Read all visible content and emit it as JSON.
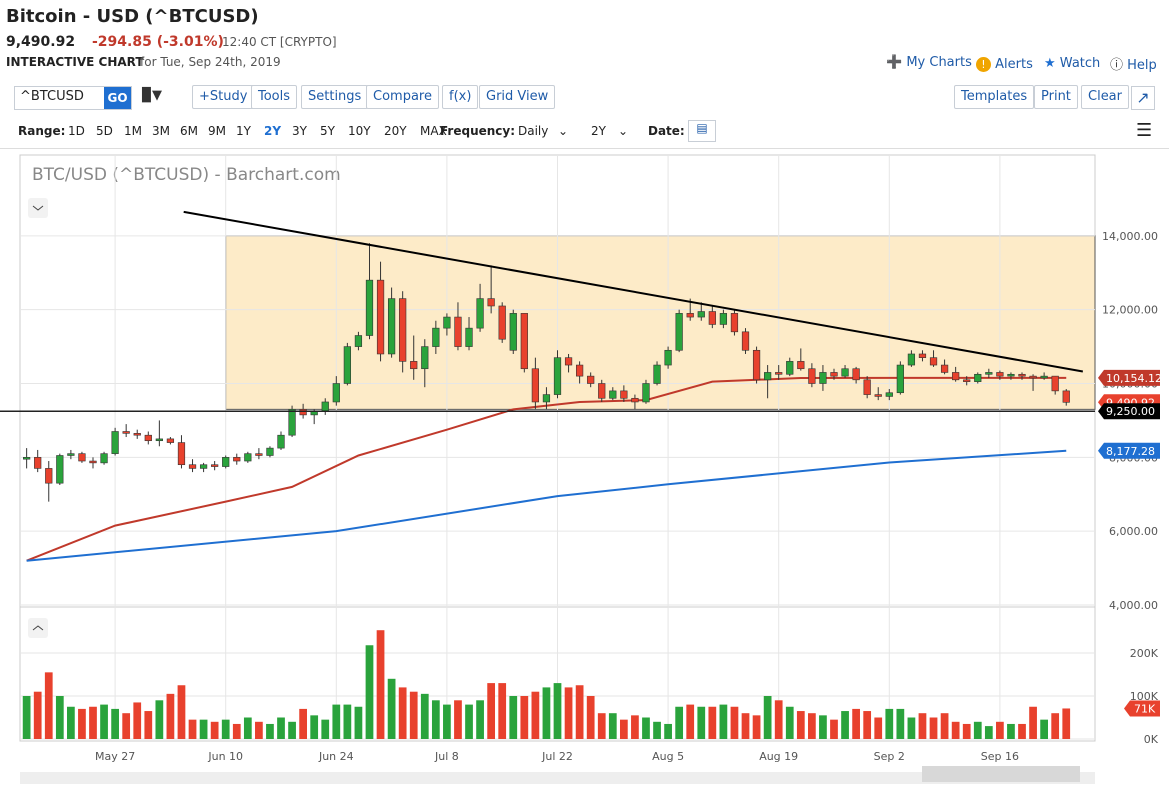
{
  "header": {
    "title": "Bitcoin - USD (^BTCUSD)",
    "price": "9,490.92",
    "change": "-294.85 (-3.01%)",
    "time": "12:40 CT [CRYPTO]",
    "chart_label": "INTERACTIVE CHART",
    "chart_date": "for Tue, Sep 24th, 2019",
    "links": [
      "My Charts",
      "Alerts",
      "Watch",
      "Help"
    ]
  },
  "toolbar": {
    "symbol": "^BTCUSD",
    "go": "GO",
    "buttons": [
      "+Study",
      "Tools",
      "Settings",
      "Compare",
      "f(x)",
      "Grid View"
    ],
    "right_buttons": [
      "Templates",
      "Print",
      "Clear"
    ]
  },
  "range_bar": {
    "range_label": "Range:",
    "ranges": [
      "1D",
      "5D",
      "1M",
      "3M",
      "6M",
      "9M",
      "1Y",
      "2Y",
      "3Y",
      "5Y",
      "10Y",
      "20Y",
      "MAX"
    ],
    "selected_range_index": 7,
    "frequency_label": "Frequency:",
    "frequency": "Daily",
    "period": "2Y",
    "date_label": "Date:"
  },
  "chart_data": {
    "type": "candlestick",
    "title": "BTC/USD (^BTCUSD) - Barchart.com",
    "up_color": "#2aa33c",
    "down_color": "#e8412d",
    "xlim": [
      -0.6,
      96.6
    ],
    "xticks": [
      {
        "value": 8,
        "label": "May 27"
      },
      {
        "value": 18,
        "label": "Jun 10"
      },
      {
        "value": 28,
        "label": "Jun 24"
      },
      {
        "value": 38,
        "label": "Jul 8"
      },
      {
        "value": 48,
        "label": "Jul 22"
      },
      {
        "value": 58,
        "label": "Aug 5"
      },
      {
        "value": 68,
        "label": "Aug 19"
      },
      {
        "value": 78,
        "label": "Sep 2"
      },
      {
        "value": 88,
        "label": "Sep 16"
      }
    ],
    "ylim": [
      4000,
      16190
    ],
    "yticks": [
      {
        "value": 4000,
        "label": "4,000.00"
      },
      {
        "value": 6000,
        "label": "6,000.00"
      },
      {
        "value": 8000,
        "label": "8,000.00"
      },
      {
        "value": 10000,
        "label": "10,000.00"
      },
      {
        "value": 12000,
        "label": "12,000.00"
      },
      {
        "value": 14000,
        "label": "14,000.00"
      }
    ],
    "candles": [
      [
        7950,
        8250,
        7700,
        8000
      ],
      [
        8000,
        8200,
        7600,
        7700
      ],
      [
        7700,
        7900,
        6800,
        7300
      ],
      [
        7300,
        8100,
        7250,
        8050
      ],
      [
        8050,
        8200,
        7950,
        8100
      ],
      [
        8100,
        8150,
        7850,
        7900
      ],
      [
        7900,
        8000,
        7700,
        7850
      ],
      [
        7850,
        8150,
        7800,
        8100
      ],
      [
        8100,
        8800,
        8050,
        8700
      ],
      [
        8700,
        8900,
        8550,
        8650
      ],
      [
        8650,
        8750,
        8500,
        8600
      ],
      [
        8600,
        8700,
        8350,
        8450
      ],
      [
        8450,
        9000,
        8300,
        8500
      ],
      [
        8500,
        8550,
        8350,
        8400
      ],
      [
        8400,
        8600,
        7700,
        7800
      ],
      [
        7800,
        7950,
        7600,
        7700
      ],
      [
        7700,
        7850,
        7600,
        7800
      ],
      [
        7800,
        7900,
        7650,
        7750
      ],
      [
        7750,
        8050,
        7700,
        8000
      ],
      [
        8000,
        8100,
        7800,
        7900
      ],
      [
        7900,
        8150,
        7850,
        8100
      ],
      [
        8100,
        8250,
        7950,
        8050
      ],
      [
        8050,
        8300,
        8000,
        8250
      ],
      [
        8250,
        8700,
        8200,
        8600
      ],
      [
        8600,
        9400,
        8550,
        9300
      ],
      [
        9300,
        9450,
        9050,
        9150
      ],
      [
        9150,
        9300,
        8900,
        9250
      ],
      [
        9250,
        9600,
        9150,
        9500
      ],
      [
        9500,
        10200,
        9400,
        10000
      ],
      [
        10000,
        11100,
        9950,
        11000
      ],
      [
        11000,
        11400,
        10900,
        11300
      ],
      [
        11300,
        13800,
        11200,
        12800
      ],
      [
        12800,
        13300,
        10600,
        10800
      ],
      [
        10800,
        12600,
        10700,
        12300
      ],
      [
        12300,
        12500,
        10300,
        10600
      ],
      [
        10600,
        11300,
        10100,
        10400
      ],
      [
        10400,
        11200,
        9900,
        11000
      ],
      [
        11000,
        11700,
        10800,
        11500
      ],
      [
        11500,
        11900,
        11300,
        11800
      ],
      [
        11800,
        12200,
        10900,
        11000
      ],
      [
        11000,
        11800,
        10900,
        11500
      ],
      [
        11500,
        12700,
        11400,
        12300
      ],
      [
        12300,
        13200,
        11900,
        12100
      ],
      [
        12100,
        12200,
        11100,
        11200
      ],
      [
        10900,
        12000,
        10800,
        11900
      ],
      [
        11900,
        11900,
        10300,
        10400
      ],
      [
        10400,
        10700,
        9300,
        9500
      ],
      [
        9500,
        9900,
        9300,
        9700
      ],
      [
        9700,
        10900,
        9600,
        10700
      ],
      [
        10700,
        10800,
        10300,
        10500
      ],
      [
        10500,
        10600,
        10000,
        10200
      ],
      [
        10200,
        10300,
        9900,
        10000
      ],
      [
        10000,
        10100,
        9500,
        9600
      ],
      [
        9600,
        9900,
        9550,
        9800
      ],
      [
        9800,
        9950,
        9500,
        9600
      ],
      [
        9600,
        9700,
        9300,
        9500
      ],
      [
        9500,
        10100,
        9450,
        10000
      ],
      [
        10000,
        10600,
        9950,
        10500
      ],
      [
        10500,
        11000,
        10400,
        10900
      ],
      [
        10900,
        12000,
        10850,
        11900
      ],
      [
        11900,
        12300,
        11700,
        11800
      ],
      [
        11800,
        12200,
        11700,
        11950
      ],
      [
        11950,
        12100,
        11500,
        11600
      ],
      [
        11600,
        12000,
        11500,
        11900
      ],
      [
        11900,
        12000,
        11300,
        11400
      ],
      [
        11400,
        11500,
        10800,
        10900
      ],
      [
        10900,
        11000,
        10000,
        10100
      ],
      [
        10100,
        10500,
        9600,
        10300
      ],
      [
        10300,
        10500,
        10100,
        10250
      ],
      [
        10250,
        10700,
        10200,
        10600
      ],
      [
        10600,
        10950,
        10350,
        10400
      ],
      [
        10400,
        10550,
        9900,
        10000
      ],
      [
        10000,
        10500,
        9800,
        10300
      ],
      [
        10300,
        10400,
        10100,
        10200
      ],
      [
        10200,
        10500,
        10150,
        10400
      ],
      [
        10400,
        10450,
        10000,
        10100
      ],
      [
        10100,
        10200,
        9600,
        9700
      ],
      [
        9700,
        9900,
        9550,
        9650
      ],
      [
        9650,
        9850,
        9550,
        9750
      ],
      [
        9750,
        10600,
        9700,
        10500
      ],
      [
        10500,
        10900,
        10450,
        10800
      ],
      [
        10800,
        10900,
        10600,
        10700
      ],
      [
        10700,
        10900,
        10450,
        10500
      ],
      [
        10500,
        10650,
        10250,
        10300
      ],
      [
        10300,
        10450,
        10050,
        10100
      ],
      [
        10100,
        10200,
        9950,
        10050
      ],
      [
        10050,
        10300,
        10000,
        10250
      ],
      [
        10250,
        10400,
        10150,
        10300
      ],
      [
        10300,
        10350,
        10100,
        10200
      ],
      [
        10200,
        10300,
        10100,
        10250
      ],
      [
        10250,
        10300,
        10100,
        10200
      ],
      [
        10200,
        10250,
        9800,
        10150
      ],
      [
        10150,
        10300,
        10100,
        10200
      ],
      [
        10200,
        10200,
        9700,
        9800
      ],
      [
        9800,
        9850,
        9400,
        9490.92
      ]
    ],
    "moving_averages": [
      {
        "color": "#c0392b",
        "x": [
          0,
          8,
          18,
          24,
          30,
          38,
          44,
          50,
          56,
          62,
          70,
          94
        ],
        "values": [
          5200,
          6150,
          6800,
          7200,
          8050,
          8750,
          9300,
          9500,
          9550,
          10050,
          10150,
          10154.12
        ]
      },
      {
        "color": "#1f6fd1",
        "x": [
          0,
          28,
          48,
          58,
          78,
          94
        ],
        "values": [
          5200,
          6000,
          6950,
          7270,
          7860,
          8177.28
        ]
      }
    ],
    "drawings": {
      "trendline": {
        "x": [
          14.2,
          95.5
        ],
        "y": [
          14650,
          10325
        ],
        "color": "#000000"
      },
      "range_box": {
        "x": [
          18,
          96.6
        ],
        "y": [
          9300,
          14000
        ],
        "color": "#fdebc8"
      },
      "support": 9250
    },
    "price_labels": [
      {
        "value": 10154.12,
        "label": "10,154.12",
        "color": "#c0392b"
      },
      {
        "value": 9490.92,
        "label": "9,490.92",
        "color": "#e8412d"
      },
      {
        "value": 9250,
        "label": "9,250.00",
        "color": "#000000"
      },
      {
        "value": 8177.28,
        "label": "8,177.28",
        "color": "#1f6fd1"
      }
    ],
    "volume": {
      "ylim": [
        0,
        300000
      ],
      "yticks": [
        {
          "value": 0,
          "label": "0K"
        },
        {
          "value": 100000,
          "label": "100K"
        },
        {
          "value": 200000,
          "label": "200K"
        }
      ],
      "values": [
        100000,
        110000,
        155000,
        100000,
        75000,
        70000,
        75000,
        80000,
        70000,
        60000,
        85000,
        65000,
        90000,
        105000,
        125000,
        45000,
        45000,
        40000,
        45000,
        35000,
        50000,
        40000,
        35000,
        50000,
        40000,
        70000,
        55000,
        45000,
        80000,
        80000,
        75000,
        218000,
        253000,
        140000,
        120000,
        110000,
        105000,
        90000,
        80000,
        90000,
        80000,
        90000,
        130000,
        130000,
        100000,
        100000,
        110000,
        120000,
        130000,
        120000,
        125000,
        100000,
        60000,
        60000,
        45000,
        55000,
        50000,
        40000,
        35000,
        75000,
        80000,
        75000,
        75000,
        80000,
        75000,
        60000,
        55000,
        100000,
        90000,
        75000,
        65000,
        60000,
        55000,
        45000,
        65000,
        70000,
        65000,
        50000,
        70000,
        70000,
        50000,
        60000,
        50000,
        60000,
        40000,
        35000,
        40000,
        30000,
        40000,
        35000,
        35000,
        75000,
        45000,
        60000,
        71000
      ],
      "last_label": {
        "value": 71000,
        "label": "71K",
        "color": "#e8412d"
      }
    }
  }
}
